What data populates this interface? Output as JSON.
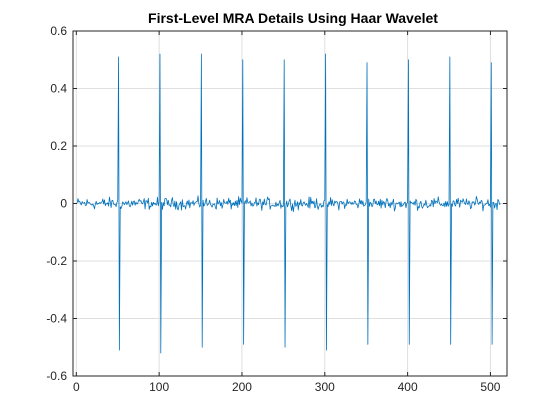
{
  "chart_data": {
    "type": "line",
    "title": "First-Level MRA Details Using Haar Wavelet",
    "xlabel": "",
    "ylabel": "",
    "xlim": [
      -4,
      520
    ],
    "ylim": [
      -0.6,
      0.6
    ],
    "grid": true,
    "xticks": [
      0,
      100,
      200,
      300,
      400,
      500
    ],
    "xtick_labels": [
      "0",
      "100",
      "200",
      "300",
      "400",
      "500"
    ],
    "yticks": [
      -0.6,
      -0.4,
      -0.2,
      0,
      0.2,
      0.4,
      0.6
    ],
    "ytick_labels": [
      "-0.6",
      "-0.4",
      "-0.2",
      "0",
      "0.2",
      "0.4",
      "0.6"
    ],
    "series": [
      {
        "color": "#0072BD",
        "n_samples": 512,
        "noise_amplitude": 0.03,
        "spikes": [
          {
            "x": 50,
            "max": 0.51,
            "min": -0.51
          },
          {
            "x": 100,
            "max": 0.52,
            "min": -0.52
          },
          {
            "x": 150,
            "max": 0.52,
            "min": -0.5
          },
          {
            "x": 200,
            "max": 0.5,
            "min": -0.49
          },
          {
            "x": 250,
            "max": 0.5,
            "min": -0.5
          },
          {
            "x": 300,
            "max": 0.52,
            "min": -0.51
          },
          {
            "x": 350,
            "max": 0.49,
            "min": -0.49
          },
          {
            "x": 400,
            "max": 0.5,
            "min": -0.49
          },
          {
            "x": 450,
            "max": 0.51,
            "min": -0.49
          },
          {
            "x": 500,
            "max": 0.49,
            "min": -0.49
          }
        ]
      }
    ]
  },
  "colors": {
    "line": "#0072BD",
    "grid": "#dfdfdf",
    "axes": "#262626"
  }
}
